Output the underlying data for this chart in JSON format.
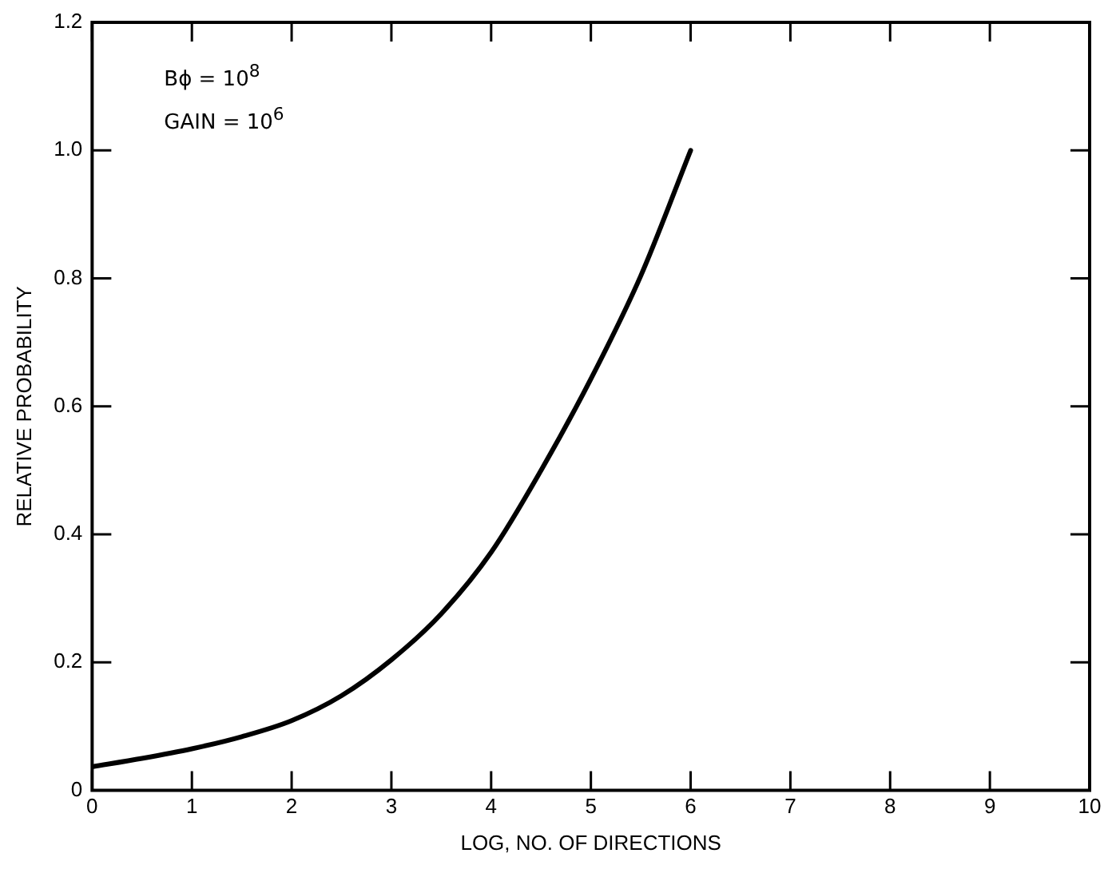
{
  "chart_data": {
    "type": "line",
    "xlabel": "LOG, NO. OF DIRECTIONS",
    "ylabel": "RELATIVE PROBABILITY",
    "annotations": [
      "Bϕ  = 10$^{8}$",
      "GAIN = 10$^{6}$"
    ],
    "series": [
      {
        "color": "#000000",
        "x": [
          0,
          0.5,
          1,
          1.5,
          2,
          2.5,
          3,
          3.5,
          4,
          4.5,
          5,
          5.5,
          6
        ],
        "values": [
          0.037,
          0.05,
          0.065,
          0.084,
          0.109,
          0.148,
          0.204,
          0.276,
          0.372,
          0.5,
          0.643,
          0.804,
          1.0
        ]
      }
    ],
    "xlim": [
      0,
      10
    ],
    "xticks": [
      0,
      1,
      2,
      3,
      4,
      5,
      6,
      7,
      8,
      9,
      10
    ],
    "ylim": [
      0,
      1.2
    ],
    "yticks": [
      0,
      {
        "value": 0.2,
        "label": "0.2"
      },
      {
        "value": 0.4,
        "label": "0.4"
      },
      {
        "value": 0.6,
        "label": "0.6"
      },
      {
        "value": 0.8,
        "label": "0.8"
      },
      {
        "value": 1.0,
        "label": "1.0"
      },
      {
        "value": 1.2,
        "label": "1.2"
      }
    ],
    "grid": false,
    "legend": false,
    "marker": "none",
    "line_style": "solid"
  }
}
